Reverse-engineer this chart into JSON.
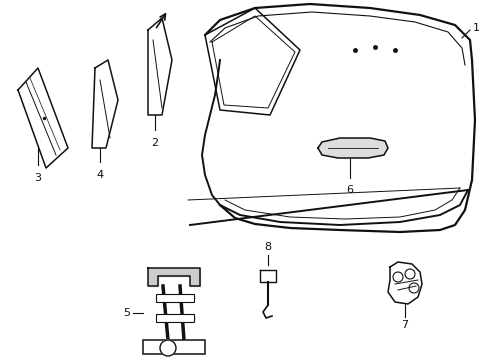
{
  "background_color": "#ffffff",
  "line_color": "#111111",
  "label_color": "#111111",
  "label_fontsize": 8,
  "figsize": [
    4.9,
    3.6
  ],
  "dpi": 100
}
